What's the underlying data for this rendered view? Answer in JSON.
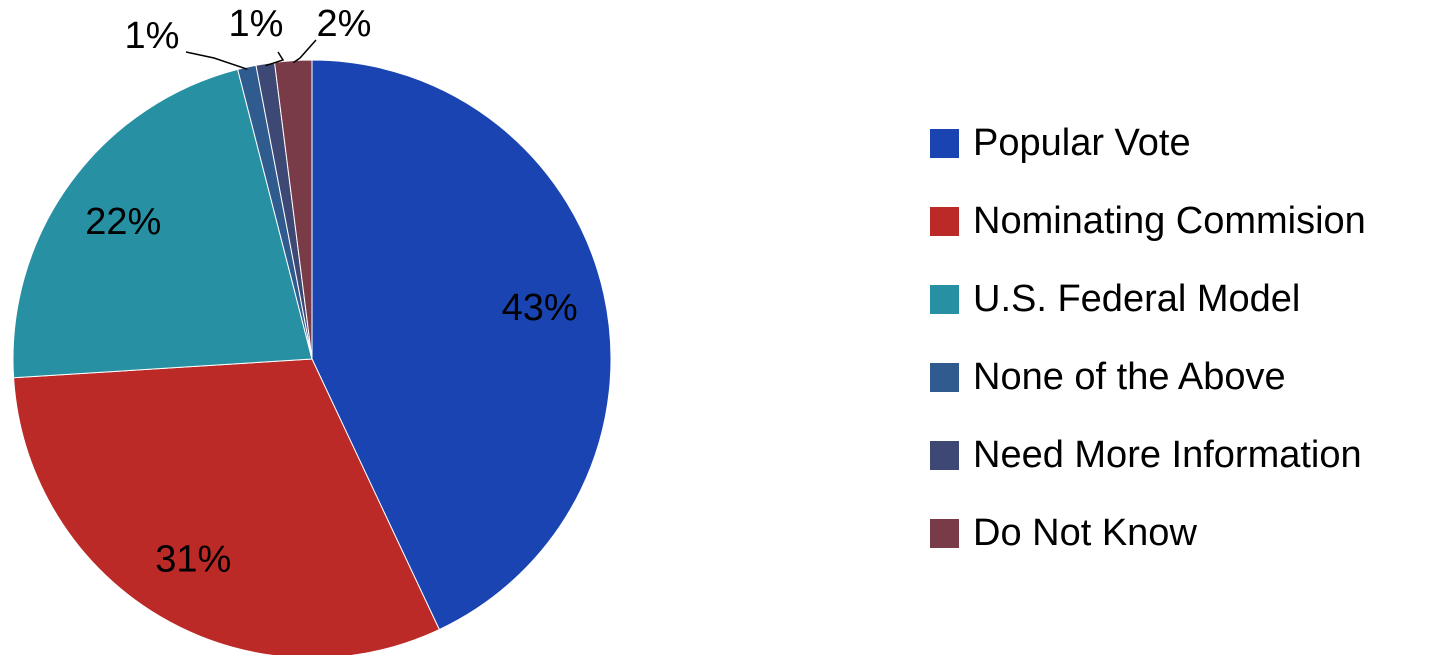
{
  "chart_data": {
    "type": "pie",
    "title": "",
    "slices": [
      {
        "name": "Popular Vote",
        "value": 43,
        "label": "43%",
        "color": "#1A44B2"
      },
      {
        "name": "Nominating Commision",
        "value": 31,
        "label": "31%",
        "color": "#BB2A27"
      },
      {
        "name": "U.S. Federal Model",
        "value": 22,
        "label": "22%",
        "color": "#2791A3"
      },
      {
        "name": "None of the Above",
        "value": 1,
        "label": "1%",
        "color": "#2F5B8E"
      },
      {
        "name": "Need More Information",
        "value": 1,
        "label": "1%",
        "color": "#3E4874"
      },
      {
        "name": "Do Not Know",
        "value": 2,
        "label": "2%",
        "color": "#7A3B48"
      }
    ],
    "legend_position": "right",
    "start_angle": "top, clockwise"
  }
}
